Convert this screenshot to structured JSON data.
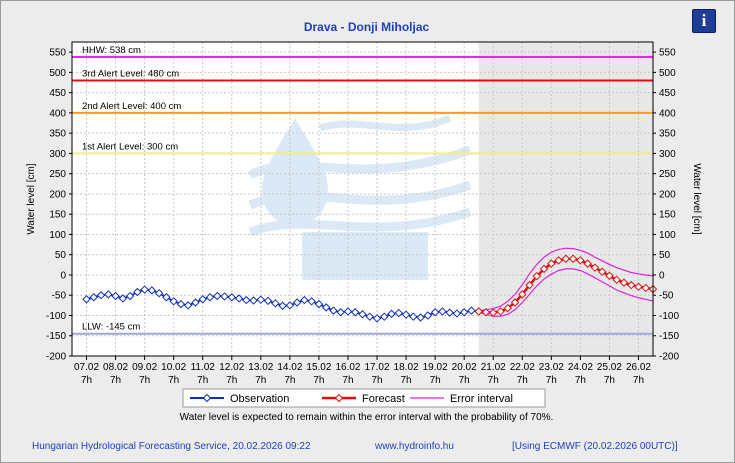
{
  "chart_data": {
    "type": "line",
    "title": "Drava - Donji Miholjac",
    "ylabel": "Water level [cm]",
    "ylabel_right": "Water level [cm]",
    "ylim": [
      -200,
      575
    ],
    "yticks": [
      -200,
      -150,
      -100,
      -50,
      0,
      50,
      100,
      150,
      200,
      250,
      300,
      350,
      400,
      450,
      500,
      550
    ],
    "x_ticks": [
      {
        "date": "07.02",
        "time": "7h"
      },
      {
        "date": "08.02",
        "time": "7h"
      },
      {
        "date": "09.02",
        "time": "7h"
      },
      {
        "date": "10.02",
        "time": "7h"
      },
      {
        "date": "11.02",
        "time": "7h"
      },
      {
        "date": "12.02",
        "time": "7h"
      },
      {
        "date": "13.02",
        "time": "7h"
      },
      {
        "date": "14.02",
        "time": "7h"
      },
      {
        "date": "15.02",
        "time": "7h"
      },
      {
        "date": "16.02",
        "time": "7h"
      },
      {
        "date": "17.02",
        "time": "7h"
      },
      {
        "date": "18.02",
        "time": "7h"
      },
      {
        "date": "19.02",
        "time": "7h"
      },
      {
        "date": "20.02",
        "time": "7h"
      },
      {
        "date": "21.02",
        "time": "7h"
      },
      {
        "date": "22.02",
        "time": "7h"
      },
      {
        "date": "23.02",
        "time": "7h"
      },
      {
        "date": "24.02",
        "time": "7h"
      },
      {
        "date": "25.02",
        "time": "7h"
      },
      {
        "date": "26.02",
        "time": "7h"
      }
    ],
    "grid": true,
    "levels": [
      {
        "label": "HHW: 538 cm",
        "value": 538,
        "color": "#ee22ee"
      },
      {
        "label": "3rd Alert Level: 480 cm",
        "value": 480,
        "color": "#e01010"
      },
      {
        "label": "2nd Alert Level: 400 cm",
        "value": 400,
        "color": "#f0a020"
      },
      {
        "label": "1st Alert Level: 300 cm",
        "value": 300,
        "color": "#f0ec90"
      },
      {
        "label": "LLW: -145 cm",
        "value": -145,
        "color": "#9aa8e0"
      }
    ],
    "observation": {
      "name": "Observation",
      "color": "#1030c0",
      "x": [
        0,
        0.25,
        0.5,
        0.75,
        1,
        1.25,
        1.5,
        1.75,
        2,
        2.25,
        2.5,
        2.75,
        3,
        3.25,
        3.5,
        3.75,
        4,
        4.25,
        4.5,
        4.75,
        5,
        5.25,
        5.5,
        5.75,
        6,
        6.25,
        6.5,
        6.75,
        7,
        7.25,
        7.5,
        7.75,
        8,
        8.25,
        8.5,
        8.75,
        9,
        9.25,
        9.5,
        9.75,
        10,
        10.25,
        10.5,
        10.75,
        11,
        11.25,
        11.5,
        11.75,
        12,
        12.25,
        12.5,
        12.75,
        13,
        13.25,
        13.5
      ],
      "y": [
        -60,
        -55,
        -50,
        -48,
        -52,
        -58,
        -52,
        -42,
        -36,
        -38,
        -45,
        -55,
        -65,
        -72,
        -75,
        -68,
        -60,
        -55,
        -52,
        -53,
        -55,
        -58,
        -62,
        -63,
        -61,
        -64,
        -70,
        -76,
        -75,
        -68,
        -62,
        -65,
        -72,
        -80,
        -88,
        -92,
        -90,
        -92,
        -97,
        -103,
        -107,
        -103,
        -96,
        -94,
        -98,
        -103,
        -105,
        -100,
        -92,
        -90,
        -93,
        -95,
        -92,
        -88,
        -90
      ]
    },
    "forecast": {
      "name": "Forecast",
      "color": "#e01010",
      "x": [
        13.5,
        13.75,
        14,
        14.25,
        14.5,
        14.75,
        15,
        15.25,
        15.5,
        15.75,
        16,
        16.25,
        16.5,
        16.75,
        17,
        17.25,
        17.5,
        17.75,
        18,
        18.25,
        18.5,
        18.75,
        19,
        19.25,
        19.5
      ],
      "y": [
        -90,
        -92,
        -93,
        -90,
        -82,
        -68,
        -48,
        -25,
        -3,
        15,
        28,
        36,
        40,
        40,
        36,
        28,
        18,
        8,
        -2,
        -12,
        -19,
        -25,
        -29,
        -32,
        -35
      ]
    },
    "error_interval": {
      "name": "Error interval",
      "color": "#dd22dd",
      "x": [
        13.5,
        13.75,
        14,
        14.25,
        14.5,
        14.75,
        15,
        15.25,
        15.5,
        15.75,
        16,
        16.25,
        16.5,
        16.75,
        17,
        17.25,
        17.5,
        17.75,
        18,
        18.25,
        18.5,
        18.75,
        19,
        19.25,
        19.5
      ],
      "upper": [
        -88,
        -86,
        -83,
        -77,
        -65,
        -48,
        -24,
        3,
        26,
        44,
        56,
        63,
        66,
        65,
        61,
        54,
        44,
        35,
        26,
        18,
        12,
        6,
        3,
        0,
        -2
      ],
      "lower": [
        -92,
        -97,
        -102,
        -102,
        -97,
        -86,
        -68,
        -48,
        -27,
        -10,
        2,
        11,
        15,
        15,
        11,
        3,
        -7,
        -17,
        -27,
        -37,
        -44,
        -51,
        -56,
        -60,
        -64
      ]
    },
    "forecast_start_x": 13.5,
    "legend_placement": "bottom"
  },
  "note": "Water level is expected to remain within the error interval with the probability of 70%.",
  "footer": {
    "left": "Hungarian Hydrological Forecasting Service, 20.02.2026 09:22",
    "center": "www.hydroinfo.hu",
    "right": "[Using ECMWF (20.02.2026  00UTC)]"
  },
  "info_button_icon": "info-icon",
  "info_button_label": "i"
}
